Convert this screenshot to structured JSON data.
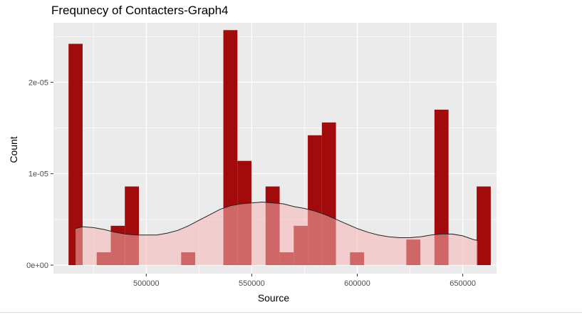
{
  "chart_data": {
    "type": "bar",
    "title": "Frequnecy of Contacters-Graph4",
    "xlabel": "Source",
    "ylabel": "Count",
    "xlim": [
      456000,
      666000
    ],
    "ylim": [
      0,
      2.65e-05
    ],
    "x_ticks": [
      {
        "value": 500000,
        "label": "500000"
      },
      {
        "value": 550000,
        "label": "550000"
      },
      {
        "value": 600000,
        "label": "600000"
      },
      {
        "value": 650000,
        "label": "650000"
      }
    ],
    "y_ticks": [
      {
        "value": 0,
        "label": "0e+00"
      },
      {
        "value": 1e-05,
        "label": "1e-05"
      },
      {
        "value": 2e-05,
        "label": "2e-05"
      }
    ],
    "grid": true,
    "bin_width": 6670,
    "bars": [
      {
        "x": 466500,
        "y": 2.42e-05
      },
      {
        "x": 473170,
        "y": 0
      },
      {
        "x": 479840,
        "y": 1.4e-06
      },
      {
        "x": 486510,
        "y": 4.3e-06
      },
      {
        "x": 493180,
        "y": 8.6e-06
      },
      {
        "x": 499850,
        "y": 0
      },
      {
        "x": 506520,
        "y": 0
      },
      {
        "x": 513190,
        "y": 0
      },
      {
        "x": 519860,
        "y": 1.4e-06
      },
      {
        "x": 526530,
        "y": 0
      },
      {
        "x": 533200,
        "y": 0
      },
      {
        "x": 539870,
        "y": 2.57e-05
      },
      {
        "x": 546540,
        "y": 1.14e-05
      },
      {
        "x": 553210,
        "y": 0
      },
      {
        "x": 559880,
        "y": 8.6e-06
      },
      {
        "x": 566550,
        "y": 1.4e-06
      },
      {
        "x": 573220,
        "y": 4.3e-06
      },
      {
        "x": 579890,
        "y": 1.42e-05
      },
      {
        "x": 586560,
        "y": 1.56e-05
      },
      {
        "x": 593230,
        "y": 0
      },
      {
        "x": 599900,
        "y": 1.4e-06
      },
      {
        "x": 606570,
        "y": 0
      },
      {
        "x": 613240,
        "y": 0
      },
      {
        "x": 619910,
        "y": 0
      },
      {
        "x": 626580,
        "y": 2.8e-06
      },
      {
        "x": 633250,
        "y": 0
      },
      {
        "x": 639920,
        "y": 1.7e-05
      },
      {
        "x": 646590,
        "y": 0
      },
      {
        "x": 653260,
        "y": 0
      },
      {
        "x": 659930,
        "y": 8.6e-06
      }
    ],
    "density": [
      {
        "x": 466500,
        "y": 4e-06
      },
      {
        "x": 470000,
        "y": 4.2e-06
      },
      {
        "x": 475000,
        "y": 4.1e-06
      },
      {
        "x": 480000,
        "y": 3.9e-06
      },
      {
        "x": 485000,
        "y": 3.6e-06
      },
      {
        "x": 490000,
        "y": 3.4e-06
      },
      {
        "x": 495000,
        "y": 3.3e-06
      },
      {
        "x": 500000,
        "y": 3.3e-06
      },
      {
        "x": 505000,
        "y": 3.3e-06
      },
      {
        "x": 510000,
        "y": 3.5e-06
      },
      {
        "x": 515000,
        "y": 3.8e-06
      },
      {
        "x": 520000,
        "y": 4.3e-06
      },
      {
        "x": 525000,
        "y": 4.9e-06
      },
      {
        "x": 530000,
        "y": 5.5e-06
      },
      {
        "x": 535000,
        "y": 6.1e-06
      },
      {
        "x": 540000,
        "y": 6.5e-06
      },
      {
        "x": 545000,
        "y": 6.7e-06
      },
      {
        "x": 550000,
        "y": 6.8e-06
      },
      {
        "x": 555000,
        "y": 6.9e-06
      },
      {
        "x": 560000,
        "y": 6.8e-06
      },
      {
        "x": 565000,
        "y": 6.7e-06
      },
      {
        "x": 570000,
        "y": 6.4e-06
      },
      {
        "x": 575000,
        "y": 6.2e-06
      },
      {
        "x": 580000,
        "y": 5.9e-06
      },
      {
        "x": 585000,
        "y": 5.5e-06
      },
      {
        "x": 590000,
        "y": 5e-06
      },
      {
        "x": 595000,
        "y": 4.5e-06
      },
      {
        "x": 600000,
        "y": 4e-06
      },
      {
        "x": 605000,
        "y": 3.6e-06
      },
      {
        "x": 610000,
        "y": 3.3e-06
      },
      {
        "x": 615000,
        "y": 3.1e-06
      },
      {
        "x": 620000,
        "y": 3e-06
      },
      {
        "x": 625000,
        "y": 3e-06
      },
      {
        "x": 630000,
        "y": 3.1e-06
      },
      {
        "x": 635000,
        "y": 3.3e-06
      },
      {
        "x": 640000,
        "y": 3.4e-06
      },
      {
        "x": 645000,
        "y": 3.4e-06
      },
      {
        "x": 650000,
        "y": 3.2e-06
      },
      {
        "x": 655000,
        "y": 2.8e-06
      },
      {
        "x": 657000,
        "y": 2.7e-06
      }
    ],
    "colors": {
      "panel": "#ebebeb",
      "grid": "#ffffff",
      "bar_fill": "#a10b0b",
      "density_fill": "#f5b5b5",
      "density_line": "#222222",
      "axis_text": "#4d4d4d",
      "title_text": "#000000"
    }
  }
}
